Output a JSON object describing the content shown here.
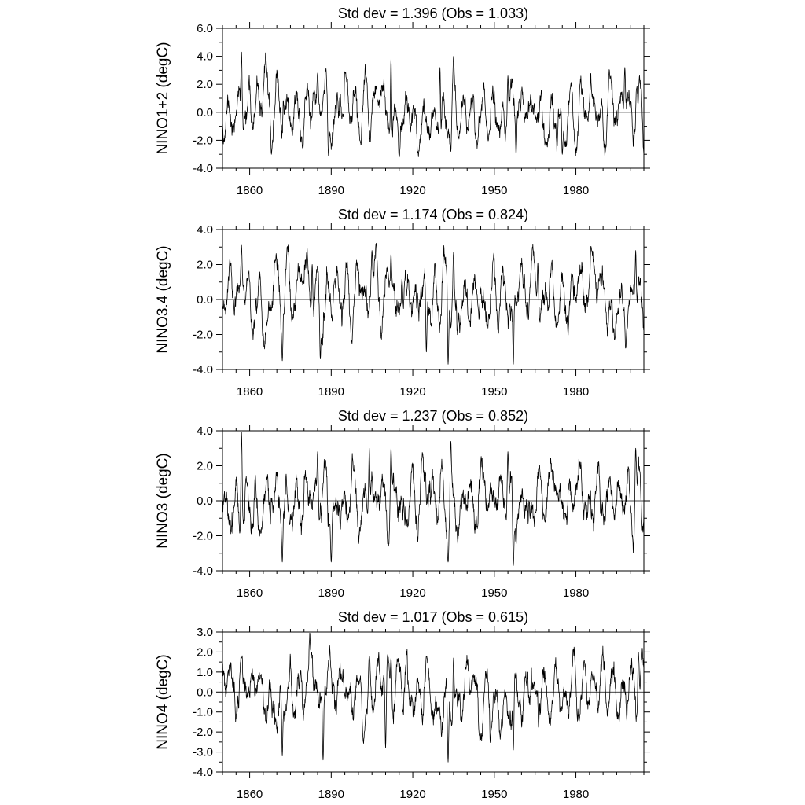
{
  "chart_data": [
    {
      "type": "line",
      "title": "Std dev = 1.396 (Obs = 1.033)",
      "ylabel": "NINO1+2 (degC)",
      "xlim": [
        1850,
        2005
      ],
      "ylim": [
        -4.0,
        6.0
      ],
      "yticks": [
        -4.0,
        -2.0,
        0.0,
        2.0,
        4.0,
        6.0
      ],
      "ytick_labels": [
        "-4.0",
        "-2.0",
        "0.0",
        "2.0",
        "4.0",
        "6.0"
      ],
      "yminor": [
        -3.0,
        -1.0,
        1.0,
        3.0,
        5.0
      ],
      "xticks": [
        1860,
        1890,
        1920,
        1950,
        1980
      ],
      "xtick_labels": [
        "1860",
        "1890",
        "1920",
        "1950",
        "1980"
      ],
      "zero_line": 0,
      "series": [
        {
          "name": "NINO1+2",
          "x_start": 1850,
          "x_end": 2005,
          "seed": 11,
          "amp": 1.33,
          "peaks": [
            [
              1857,
              4.3
            ],
            [
              1885,
              2.8
            ],
            [
              1895,
              2.9
            ],
            [
              1912,
              3.8
            ],
            [
              1930,
              3.2
            ],
            [
              1935,
              4.0
            ],
            [
              1955,
              2.6
            ],
            [
              1998,
              3.2
            ]
          ],
          "troughs": [
            [
              1868,
              -3.0
            ],
            [
              1889,
              -3.1
            ],
            [
              1915,
              -3.2
            ],
            [
              1934,
              -2.8
            ],
            [
              1958,
              -3.0
            ],
            [
              1975,
              -3.0
            ]
          ]
        }
      ]
    },
    {
      "type": "line",
      "title": "Std dev = 1.174 (Obs = 0.824)",
      "ylabel": "NINO3.4 (degC)",
      "xlim": [
        1850,
        2005
      ],
      "ylim": [
        -4.0,
        4.0
      ],
      "yticks": [
        -4.0,
        -2.0,
        0.0,
        2.0,
        4.0
      ],
      "ytick_labels": [
        "-4.0",
        "-2.0",
        "0.0",
        "2.0",
        "4.0"
      ],
      "yminor": [
        -3.0,
        -1.0,
        1.0,
        3.0
      ],
      "xticks": [
        1860,
        1890,
        1920,
        1950,
        1980
      ],
      "xtick_labels": [
        "1860",
        "1890",
        "1920",
        "1950",
        "1980"
      ],
      "zero_line": 0,
      "series": [
        {
          "name": "NINO3.4",
          "x_start": 1850,
          "x_end": 2005,
          "seed": 23,
          "amp": 1.12,
          "peaks": [
            [
              1857,
              3.1
            ],
            [
              1883,
              2.0
            ],
            [
              1905,
              2.8
            ],
            [
              1912,
              2.6
            ],
            [
              1935,
              2.7
            ],
            [
              1966,
              2.1
            ],
            [
              2002,
              2.8
            ]
          ],
          "troughs": [
            [
              1872,
              -3.5
            ],
            [
              1886,
              -3.4
            ],
            [
              1933,
              -3.7
            ],
            [
              1957,
              -3.7
            ],
            [
              1925,
              -3.0
            ]
          ]
        }
      ]
    },
    {
      "type": "line",
      "title": "Std dev = 1.237 (Obs = 0.852)",
      "ylabel": "NINO3 (degC)",
      "xlim": [
        1850,
        2005
      ],
      "ylim": [
        -4.0,
        4.0
      ],
      "yticks": [
        -4.0,
        -2.0,
        0.0,
        2.0,
        4.0
      ],
      "ytick_labels": [
        "-4.0",
        "-2.0",
        "0.0",
        "2.0",
        "4.0"
      ],
      "yminor": [
        -3.0,
        -1.0,
        1.0,
        3.0
      ],
      "xticks": [
        1860,
        1890,
        1920,
        1950,
        1980
      ],
      "xtick_labels": [
        "1860",
        "1890",
        "1920",
        "1950",
        "1980"
      ],
      "zero_line": 0,
      "series": [
        {
          "name": "NINO3",
          "x_start": 1850,
          "x_end": 2005,
          "seed": 37,
          "amp": 1.18,
          "peaks": [
            [
              1857,
              3.9
            ],
            [
              1885,
              2.8
            ],
            [
              1904,
              3.0
            ],
            [
              1912,
              3.0
            ],
            [
              1934,
              3.4
            ],
            [
              1955,
              2.8
            ],
            [
              2002,
              3.0
            ]
          ],
          "troughs": [
            [
              1872,
              -3.5
            ],
            [
              1890,
              -3.5
            ],
            [
              1933,
              -3.5
            ],
            [
              1957,
              -3.7
            ]
          ]
        }
      ]
    },
    {
      "type": "line",
      "title": "Std dev = 1.017 (Obs = 0.615)",
      "ylabel": "NINO4 (degC)",
      "xlim": [
        1850,
        2005
      ],
      "ylim": [
        -4.0,
        3.0
      ],
      "yticks": [
        -4.0,
        -3.0,
        -2.0,
        -1.0,
        0.0,
        1.0,
        2.0,
        3.0
      ],
      "ytick_labels": [
        "-4.0",
        "-3.0",
        "-2.0",
        "-1.0",
        "0.0",
        "1.0",
        "2.0",
        "3.0"
      ],
      "yminor": [
        -3.5,
        -2.5,
        -1.5,
        -0.5,
        0.5,
        1.5,
        2.5
      ],
      "xticks": [
        1860,
        1890,
        1920,
        1950,
        1980
      ],
      "xtick_labels": [
        "1860",
        "1890",
        "1920",
        "1950",
        "1980"
      ],
      "zero_line": 0,
      "series": [
        {
          "name": "NINO4",
          "x_start": 1850,
          "x_end": 2005,
          "seed": 53,
          "amp": 0.97,
          "peaks": [
            [
              1857,
              1.7
            ],
            [
              1904,
              1.8
            ],
            [
              1912,
              1.7
            ],
            [
              1925,
              1.8
            ],
            [
              1935,
              1.7
            ],
            [
              2003,
              2.0
            ]
          ],
          "troughs": [
            [
              1872,
              -3.2
            ],
            [
              1887,
              -3.4
            ],
            [
              1933,
              -3.5
            ],
            [
              1957,
              -2.9
            ],
            [
              1910,
              -2.8
            ]
          ]
        }
      ]
    }
  ]
}
